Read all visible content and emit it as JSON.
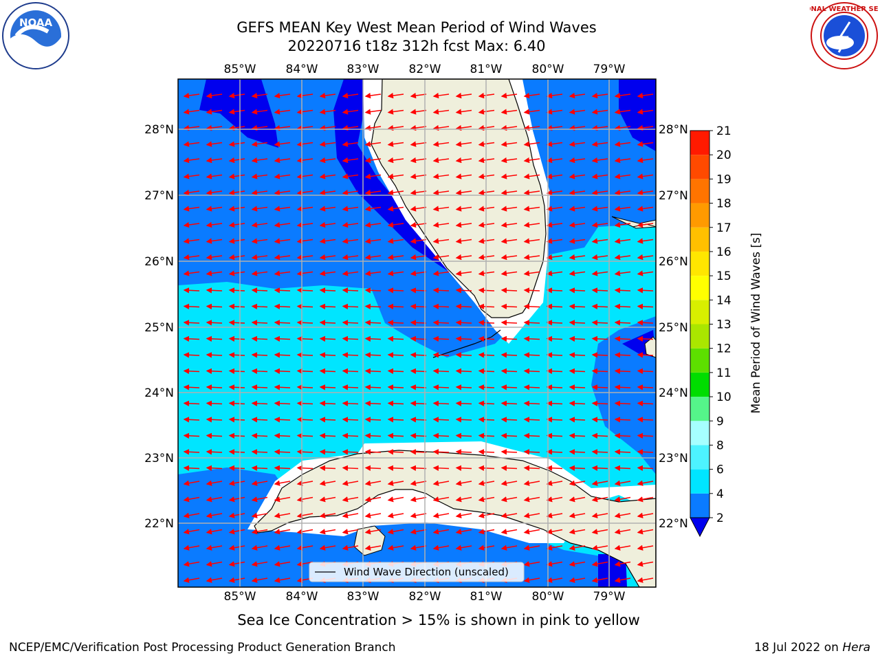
{
  "title": {
    "line1": "GEFS MEAN Key West Mean Period of Wind Waves",
    "line2": "20220716 t18z 312h fcst   Max: 6.40"
  },
  "axes": {
    "lon_labels": [
      "85°W",
      "84°W",
      "83°W",
      "82°W",
      "81°W",
      "80°W",
      "79°W"
    ],
    "lat_labels": [
      "28°N",
      "27°N",
      "26°N",
      "25°N",
      "24°N",
      "23°N",
      "22°N"
    ]
  },
  "legend": {
    "label": "Wind Wave Direction (unscaled)"
  },
  "colorbar": {
    "label": "Mean Period of Wind Waves [s]",
    "ticks": [
      "2",
      "4",
      "6",
      "8",
      "9",
      "10",
      "11",
      "12",
      "13",
      "14",
      "15",
      "16",
      "17",
      "18",
      "19",
      "20",
      "21"
    ],
    "colors": [
      "#0a7bff",
      "#00e5ff",
      "#4df3ff",
      "#a6ffff",
      "#55f58a",
      "#00dd00",
      "#5ddf00",
      "#aae600",
      "#d8ef00",
      "#ffff00",
      "#ffe600",
      "#ffc000",
      "#ff9a00",
      "#ff7400",
      "#ff4a00",
      "#ff1a00"
    ],
    "under_color": "#0000ee"
  },
  "caption": "Sea Ice Concentration > 15% is shown in pink to yellow",
  "footer": {
    "left": "NCEP/EMC/Verification Post Processing Product Generation Branch",
    "right_date": "18 Jul 2022 on ",
    "right_host": "Hera"
  },
  "colors": {
    "level_2_4": "#0a7bff",
    "level_4_6": "#00e5ff",
    "below_2": "#0000ee",
    "land": "#efefdc",
    "arrows": "#ff0000",
    "grid": "#b0b0b0"
  },
  "logos": {
    "noaa": "NOAA",
    "nws": "NATIONAL WEATHER SERVICE"
  }
}
